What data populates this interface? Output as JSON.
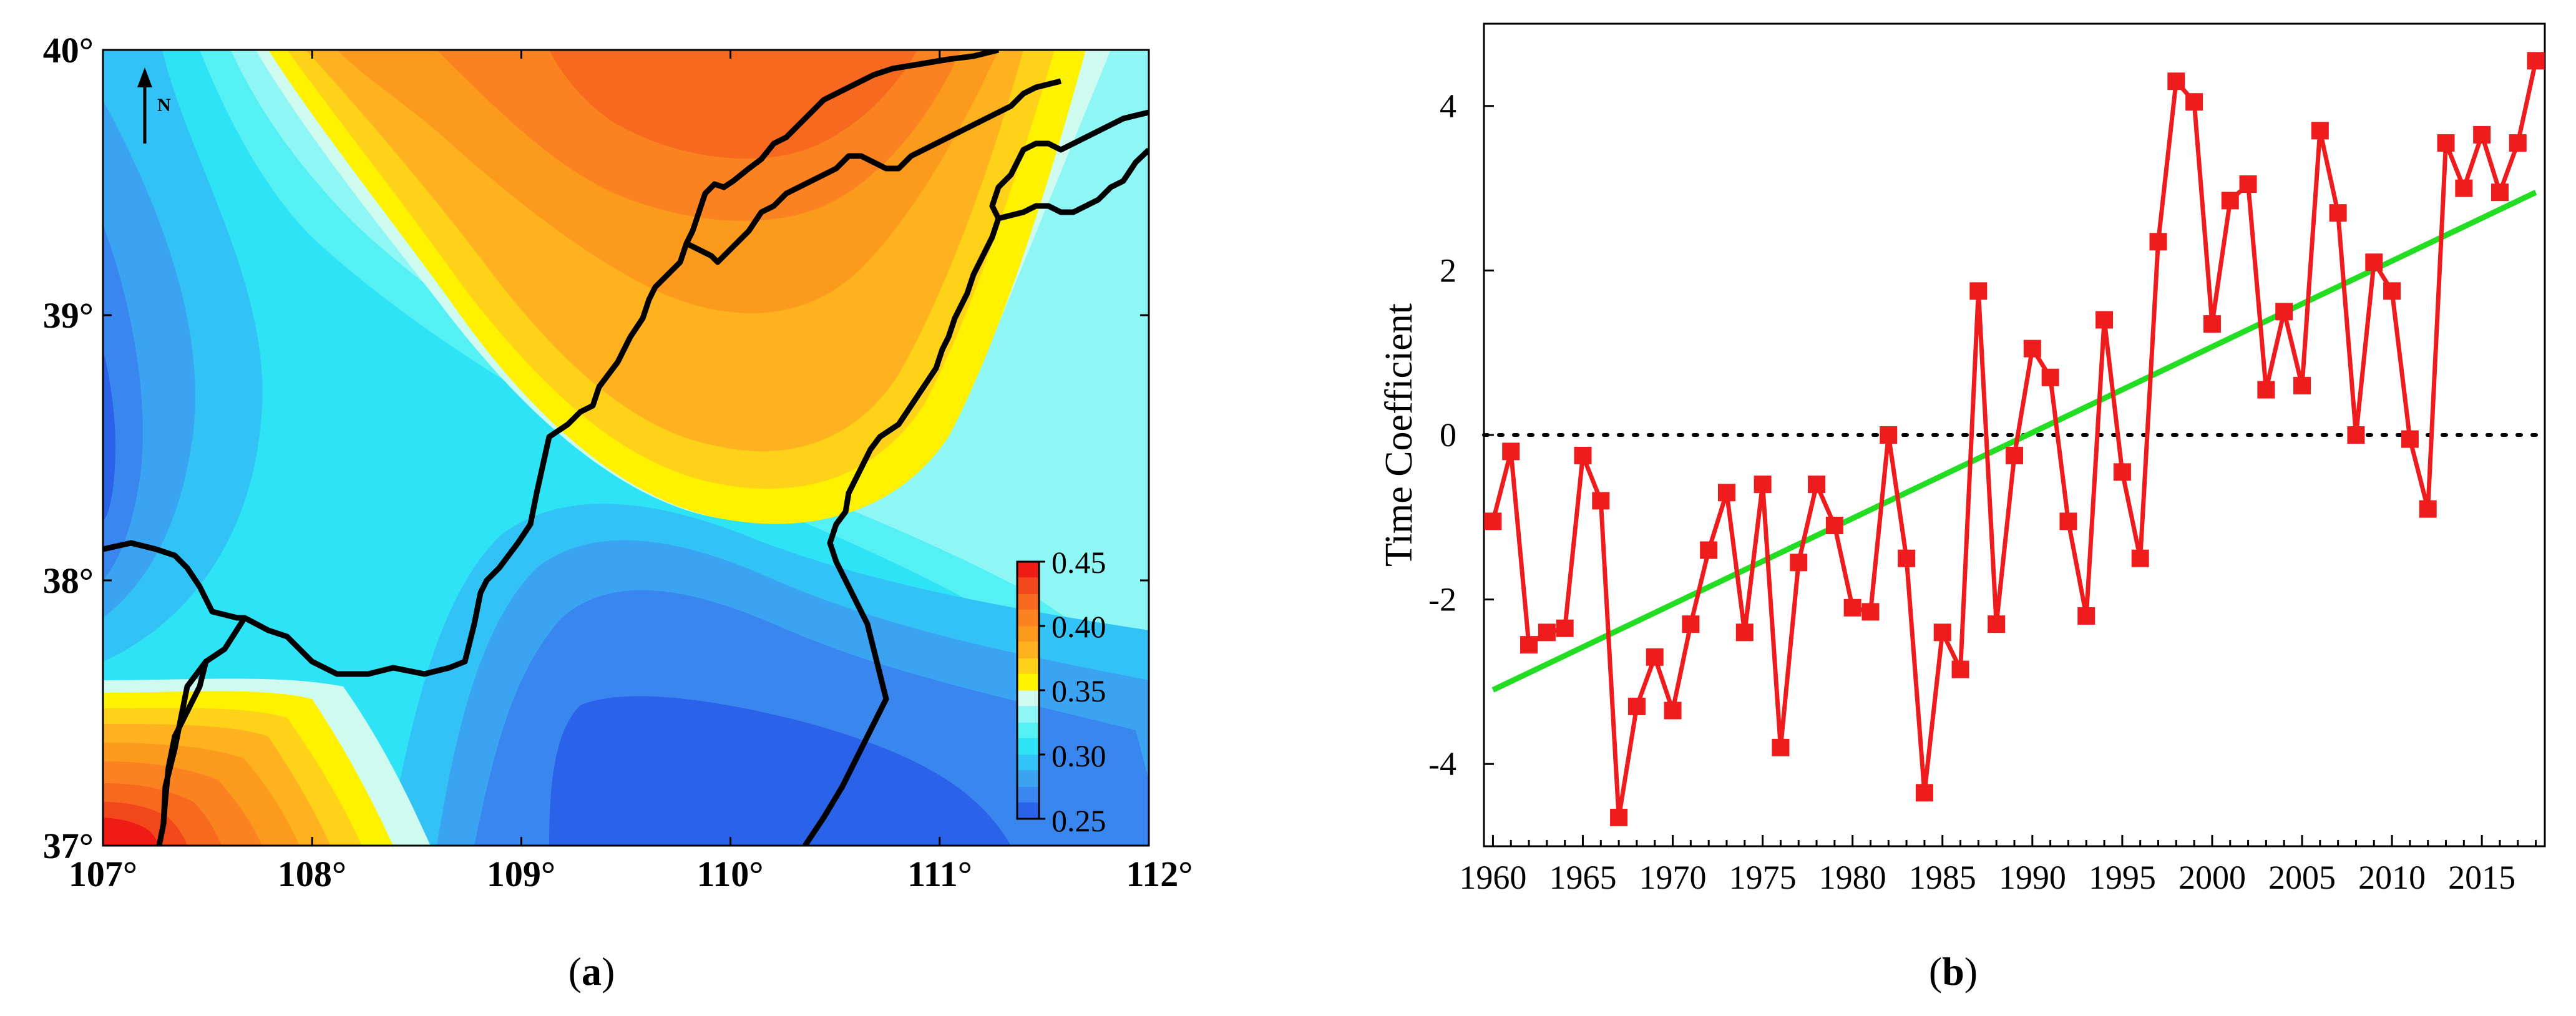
{
  "panel_a": {
    "caption_prefix": "(",
    "caption_letter": "a",
    "caption_suffix": ")",
    "north_label": "N",
    "lon_ticks": [
      "107°",
      "108°",
      "109°",
      "110°",
      "111°",
      "112°"
    ],
    "lat_ticks": [
      "40°",
      "39°",
      "38°",
      "37°"
    ],
    "colorbar_ticks": [
      "0.45",
      "0.40",
      "0.35",
      "0.30",
      "0.25"
    ]
  },
  "panel_b": {
    "caption_prefix": "(",
    "caption_letter": "b",
    "caption_suffix": ")"
  },
  "chart_data": [
    {
      "type": "heatmap",
      "title": "",
      "xlabel": "",
      "ylabel": "",
      "x_range": [
        107,
        112
      ],
      "y_range": [
        37,
        40
      ],
      "x_ticks": [
        "107°",
        "108°",
        "109°",
        "110°",
        "111°",
        "112°"
      ],
      "y_ticks": [
        "37°",
        "38°",
        "39°",
        "40°"
      ],
      "colorbar": {
        "range": [
          0.25,
          0.45
        ],
        "ticks": [
          "0.25",
          "0.30",
          "0.35",
          "0.40",
          "0.45"
        ],
        "levels": [
          {
            "value": 0.25,
            "color": "#2b62ea"
          },
          {
            "value": 0.263,
            "color": "#3a86ef"
          },
          {
            "value": 0.275,
            "color": "#3ba4f2"
          },
          {
            "value": 0.288,
            "color": "#33c2f5"
          },
          {
            "value": 0.3,
            "color": "#2ee3f5"
          },
          {
            "value": 0.313,
            "color": "#55f0f4"
          },
          {
            "value": 0.325,
            "color": "#8ff6f6"
          },
          {
            "value": 0.338,
            "color": "#cffaf0"
          },
          {
            "value": 0.35,
            "color": "#fff200"
          },
          {
            "value": 0.363,
            "color": "#ffd21a"
          },
          {
            "value": 0.375,
            "color": "#ffb21f"
          },
          {
            "value": 0.388,
            "color": "#fc9a1e"
          },
          {
            "value": 0.4,
            "color": "#fa8220"
          },
          {
            "value": 0.413,
            "color": "#f6691e"
          },
          {
            "value": 0.425,
            "color": "#f2471b"
          },
          {
            "value": 0.438,
            "color": "#ee1c14"
          }
        ]
      }
    },
    {
      "type": "line",
      "title": "",
      "xlabel": "",
      "ylabel": "Time Coefficient",
      "xlim": [
        1959.5,
        2018.5
      ],
      "ylim": [
        -5,
        5
      ],
      "x_ticks": [
        1960,
        1965,
        1970,
        1975,
        1980,
        1985,
        1990,
        1995,
        2000,
        2005,
        2010,
        2015
      ],
      "y_ticks": [
        4,
        2,
        0,
        -2,
        -4
      ],
      "y_tick_labels": [
        "4",
        "2",
        "0",
        "-2",
        "-4"
      ],
      "x_tick_labels": [
        "1960",
        "1965",
        "1970",
        "1975",
        "1980",
        "1985",
        "1990",
        "1995",
        "2000",
        "2005",
        "2010",
        "2015"
      ],
      "series": [
        {
          "name": "Time Coefficient",
          "color": "#ee1c1c",
          "marker": "square",
          "x": [
            1960,
            1961,
            1962,
            1963,
            1964,
            1965,
            1966,
            1967,
            1968,
            1969,
            1970,
            1971,
            1972,
            1973,
            1974,
            1975,
            1976,
            1977,
            1978,
            1979,
            1980,
            1981,
            1982,
            1983,
            1984,
            1985,
            1986,
            1987,
            1988,
            1989,
            1990,
            1991,
            1992,
            1993,
            1994,
            1995,
            1996,
            1997,
            1998,
            1999,
            2000,
            2001,
            2002,
            2003,
            2004,
            2005,
            2006,
            2007,
            2008,
            2009,
            2010,
            2011,
            2012,
            2013,
            2014,
            2015,
            2016,
            2017,
            2018
          ],
          "values": [
            -1.05,
            -0.2,
            -2.55,
            -2.4,
            -2.35,
            -0.25,
            -0.8,
            -4.65,
            -3.3,
            -2.7,
            -3.35,
            -2.3,
            -1.4,
            -0.7,
            -2.4,
            -0.6,
            -3.8,
            -1.55,
            -0.6,
            -1.1,
            -2.1,
            -2.15,
            0.0,
            -1.5,
            -4.35,
            -2.4,
            -2.85,
            1.75,
            -2.3,
            -0.25,
            1.05,
            0.7,
            -1.05,
            -2.2,
            1.4,
            -0.45,
            -1.5,
            2.35,
            4.3,
            4.05,
            1.35,
            2.85,
            3.05,
            0.55,
            1.5,
            0.6,
            3.7,
            2.7,
            0.0,
            2.1,
            1.75,
            -0.05,
            -0.9,
            3.55,
            3.0,
            3.65,
            2.95,
            3.55,
            4.55
          ]
        },
        {
          "name": "Linear trend",
          "color": "#22dd22",
          "x": [
            1960,
            2018
          ],
          "values": [
            -3.1,
            2.95
          ]
        },
        {
          "name": "Zero line",
          "color": "#000000",
          "style": "dotted",
          "x": [
            1959.5,
            2018.5
          ],
          "values": [
            0,
            0
          ]
        }
      ]
    }
  ]
}
